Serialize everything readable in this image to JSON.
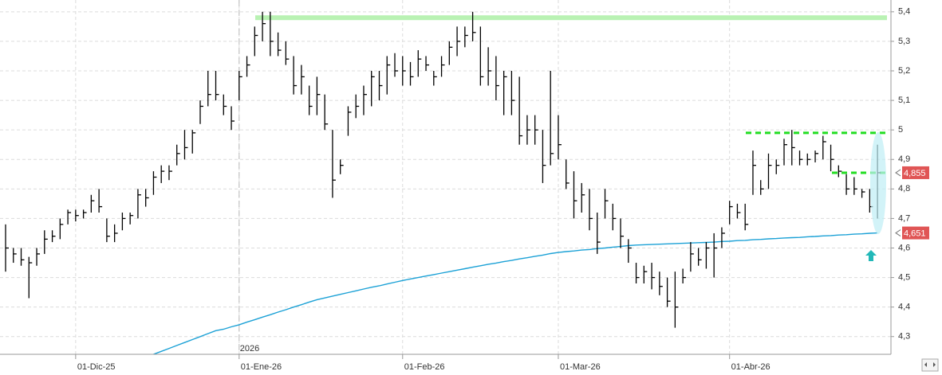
{
  "chart_data": {
    "type": "ohlc",
    "categories": [
      null,
      null,
      null,
      null,
      null,
      null,
      null,
      null,
      null,
      "01-Dic-25",
      null,
      null,
      null,
      null,
      null,
      null,
      null,
      null,
      null,
      null,
      null,
      null,
      null,
      null,
      null,
      null,
      null,
      null,
      null,
      null,
      "01-Ene-26",
      null,
      null,
      null,
      null,
      null,
      null,
      null,
      null,
      null,
      null,
      null,
      null,
      null,
      null,
      null,
      null,
      null,
      null,
      null,
      null,
      "01-Feb-26",
      null,
      null,
      null,
      null,
      null,
      null,
      null,
      null,
      null,
      null,
      null,
      null,
      null,
      null,
      null,
      null,
      null,
      null,
      null,
      "01-Mar-26",
      null,
      null,
      null,
      null,
      null,
      null,
      null,
      null,
      null,
      null,
      null,
      null,
      null,
      null,
      null,
      null,
      null,
      null,
      null,
      null,
      null,
      "01-Abr-26",
      null,
      null,
      null,
      null,
      null,
      null,
      null,
      null,
      null,
      null,
      null,
      null,
      null,
      null,
      null,
      null,
      null,
      null,
      null
    ],
    "year_label": "2026",
    "ohlc": {
      "color": "#000000",
      "high": [
        4.68,
        4.6,
        4.6,
        4.57,
        4.6,
        4.66,
        4.66,
        4.7,
        4.73,
        4.73,
        4.73,
        4.78,
        4.8,
        4.7,
        4.68,
        4.72,
        4.72,
        4.8,
        4.8,
        4.86,
        4.88,
        4.88,
        4.95,
        5.0,
        5.0,
        5.1,
        5.2,
        5.2,
        5.12,
        5.08,
        5.2,
        5.25,
        5.35,
        5.4,
        5.4,
        5.33,
        5.3,
        5.25,
        5.22,
        5.15,
        5.18,
        5.12,
        5.0,
        4.9,
        5.08,
        5.12,
        5.15,
        5.2,
        5.2,
        5.25,
        5.26,
        5.25,
        5.23,
        5.27,
        5.25,
        5.2,
        5.25,
        5.3,
        5.35,
        5.35,
        5.4,
        5.35,
        5.28,
        5.25,
        5.2,
        5.2,
        5.18,
        5.05,
        5.05,
        5.0,
        5.2,
        5.05,
        4.9,
        4.86,
        4.82,
        4.8,
        4.72,
        4.8,
        4.75,
        4.7,
        4.63,
        4.55,
        4.54,
        4.55,
        4.52,
        4.5,
        4.52,
        4.53,
        4.62,
        4.6,
        4.62,
        4.65,
        4.67,
        4.76,
        4.75,
        4.75,
        4.93,
        4.83,
        4.92,
        4.9,
        4.97,
        5.0,
        4.93,
        4.92,
        4.93,
        4.98,
        4.95,
        4.88,
        4.85,
        4.84,
        4.8,
        4.8,
        4.95
      ],
      "low": [
        4.52,
        4.55,
        4.54,
        4.43,
        4.54,
        4.58,
        4.62,
        4.63,
        4.68,
        4.69,
        4.7,
        4.72,
        4.72,
        4.62,
        4.62,
        4.66,
        4.68,
        4.7,
        4.74,
        4.78,
        4.82,
        4.83,
        4.88,
        4.9,
        4.92,
        5.02,
        5.08,
        5.1,
        5.05,
        5.0,
        5.1,
        5.18,
        5.25,
        5.3,
        5.25,
        5.25,
        5.22,
        5.12,
        5.12,
        5.05,
        5.05,
        5.0,
        4.77,
        4.85,
        4.98,
        5.04,
        5.05,
        5.08,
        5.1,
        5.12,
        5.18,
        5.15,
        5.15,
        5.18,
        5.2,
        5.15,
        5.18,
        5.22,
        5.25,
        5.28,
        5.3,
        5.15,
        5.15,
        5.1,
        5.05,
        5.05,
        4.95,
        4.95,
        4.95,
        4.82,
        4.88,
        4.9,
        4.8,
        4.7,
        4.72,
        4.66,
        4.58,
        4.7,
        4.66,
        4.6,
        4.55,
        4.48,
        4.48,
        4.46,
        4.44,
        4.4,
        4.33,
        4.48,
        4.52,
        4.54,
        4.53,
        4.5,
        4.6,
        4.68,
        4.7,
        4.66,
        4.78,
        4.78,
        4.8,
        4.85,
        4.88,
        4.88,
        4.88,
        4.88,
        4.89,
        4.9,
        4.86,
        4.84,
        4.78,
        4.78,
        4.77,
        4.72,
        4.7
      ],
      "close": [
        4.6,
        4.58,
        4.56,
        4.55,
        4.58,
        4.63,
        4.64,
        4.68,
        4.72,
        4.71,
        4.72,
        4.76,
        4.74,
        4.64,
        4.65,
        4.7,
        4.71,
        4.78,
        4.77,
        4.84,
        4.86,
        4.86,
        4.92,
        4.94,
        4.99,
        5.08,
        5.12,
        5.12,
        5.08,
        5.03,
        5.18,
        5.22,
        5.32,
        5.36,
        5.3,
        5.27,
        5.24,
        5.15,
        5.18,
        5.08,
        5.12,
        5.02,
        4.83,
        4.88,
        5.06,
        5.08,
        5.12,
        5.18,
        5.15,
        5.22,
        5.2,
        5.2,
        5.18,
        5.24,
        5.22,
        5.18,
        5.22,
        5.28,
        5.3,
        5.32,
        5.33,
        5.18,
        5.2,
        5.15,
        5.18,
        5.1,
        4.98,
        5.0,
        5.0,
        4.88,
        4.92,
        4.95,
        4.82,
        4.76,
        4.78,
        4.7,
        4.62,
        4.76,
        4.7,
        4.64,
        4.6,
        4.5,
        4.52,
        4.5,
        4.47,
        4.42,
        4.4,
        4.5,
        4.58,
        4.56,
        4.6,
        4.6,
        4.65,
        4.74,
        4.72,
        4.68,
        4.88,
        4.8,
        4.88,
        4.88,
        4.95,
        4.94,
        4.9,
        4.9,
        4.92,
        4.96,
        4.9,
        4.86,
        4.8,
        4.8,
        4.79,
        4.74,
        4.855
      ]
    },
    "ma": {
      "color": "#1ba1d6",
      "values": [
        null,
        null,
        null,
        null,
        null,
        null,
        null,
        null,
        null,
        null,
        null,
        null,
        null,
        null,
        null,
        null,
        null,
        null,
        null,
        4.24,
        4.25,
        4.26,
        4.27,
        4.28,
        4.29,
        4.3,
        4.31,
        4.32,
        4.325,
        4.333,
        4.34,
        4.349,
        4.357,
        4.366,
        4.374,
        4.383,
        4.391,
        4.4,
        4.408,
        4.417,
        4.425,
        4.431,
        4.437,
        4.443,
        4.449,
        4.455,
        4.461,
        4.467,
        4.472,
        4.478,
        4.484,
        4.49,
        4.495,
        4.5,
        4.505,
        4.51,
        4.515,
        4.52,
        4.525,
        4.53,
        4.535,
        4.54,
        4.545,
        4.549,
        4.554,
        4.558,
        4.563,
        4.567,
        4.572,
        4.576,
        4.581,
        4.585,
        4.588,
        4.59,
        4.593,
        4.595,
        4.598,
        4.6,
        4.603,
        4.605,
        4.608,
        4.61,
        4.611,
        4.612,
        4.613,
        4.614,
        4.615,
        4.616,
        4.617,
        4.618,
        4.619,
        4.62,
        4.622,
        4.623,
        4.625,
        4.626,
        4.628,
        4.629,
        4.631,
        4.632,
        4.634,
        4.635,
        4.636,
        4.638,
        4.639,
        4.641,
        4.642,
        4.644,
        4.645,
        4.647,
        4.648,
        4.65,
        4.651
      ]
    },
    "levels": [
      {
        "value": 5.38,
        "color": "#b9f2b3",
        "style": "solid"
      },
      {
        "value": 4.99,
        "color": "#22dd22",
        "style": "dashed"
      },
      {
        "value": 4.855,
        "color": "#22dd22",
        "style": "dashed"
      }
    ],
    "price_labels": [
      {
        "value": 4.855,
        "label": "4,855",
        "color": "#e05555"
      },
      {
        "value": 4.651,
        "label": "4,651",
        "color": "#e05555"
      }
    ],
    "ylim": [
      4.24,
      5.44
    ],
    "yticks": [
      {
        "value": 4.3,
        "label": "4,3"
      },
      {
        "value": 4.4,
        "label": "4,4"
      },
      {
        "value": 4.5,
        "label": "4,5"
      },
      {
        "value": 4.6,
        "label": "4,6"
      },
      {
        "value": 4.7,
        "label": "4,7"
      },
      {
        "value": 4.8,
        "label": "4,8"
      },
      {
        "value": 4.9,
        "label": "4,9"
      },
      5,
      {
        "value": 5.1,
        "label": "5,1"
      },
      {
        "value": 5.2,
        "label": "5,2"
      },
      {
        "value": 5.3,
        "label": "5,3"
      },
      {
        "value": 5.4,
        "label": "5,4"
      }
    ],
    "grid": true
  }
}
